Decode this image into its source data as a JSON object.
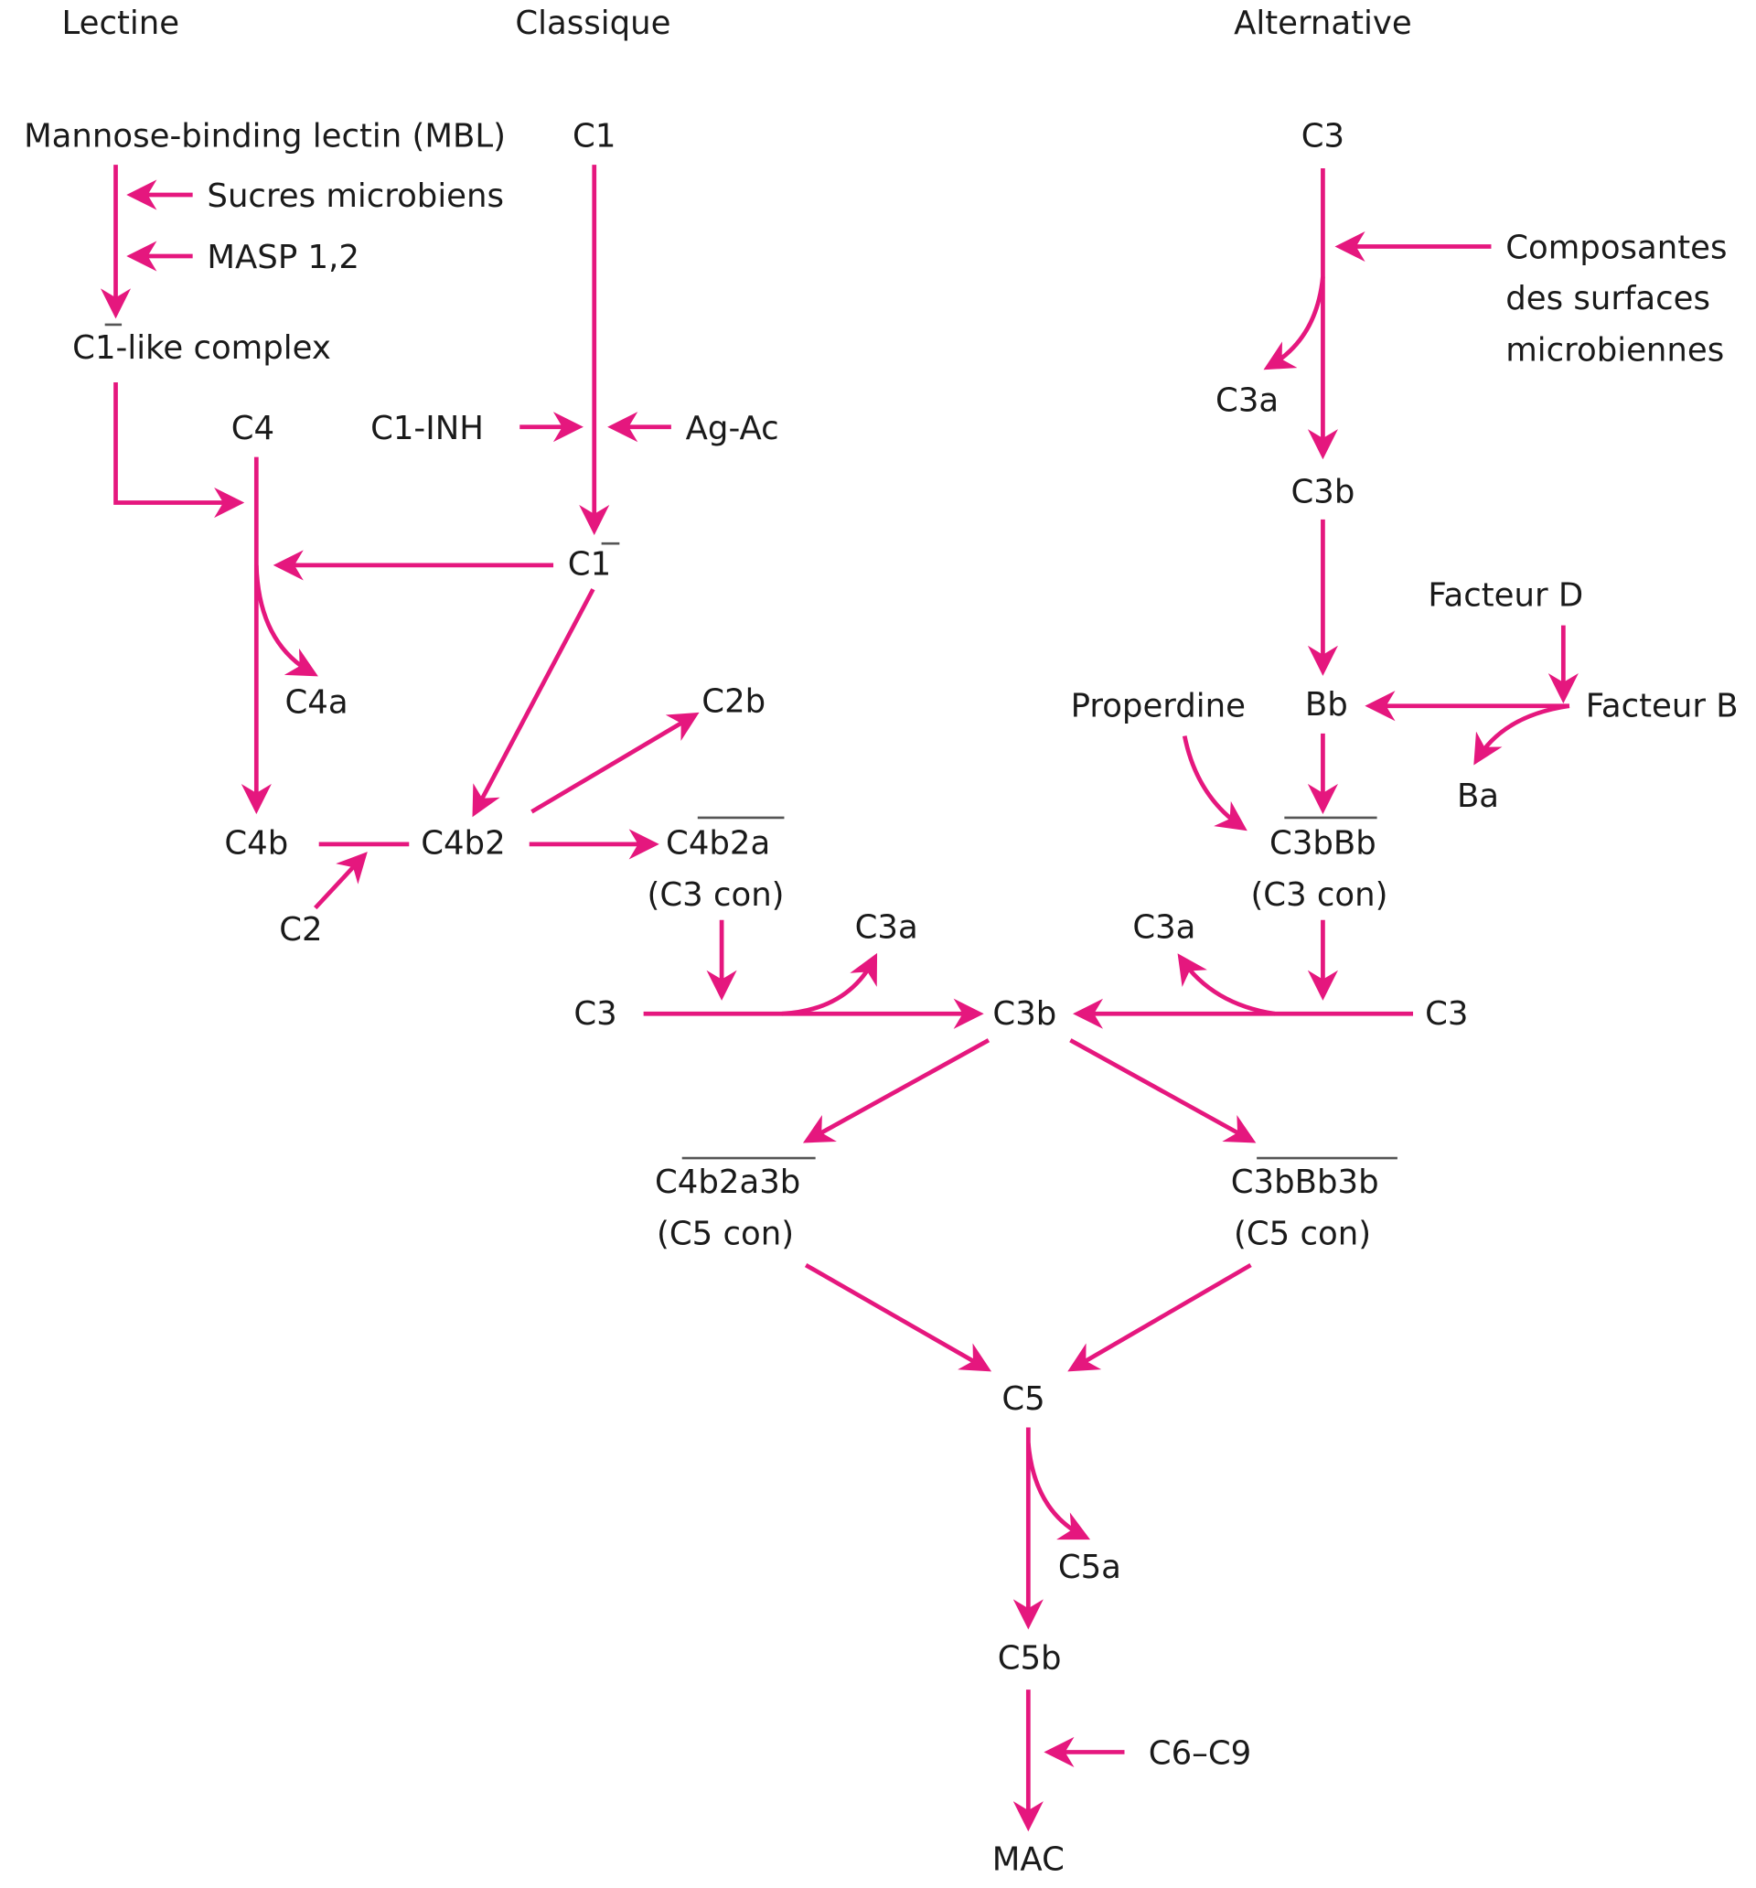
{
  "colors": {
    "arrow": "#e5177e",
    "text": "#1a1a1a"
  },
  "headers": {
    "lectin": "Lectine",
    "classical": "Classique",
    "alternative": "Alternative"
  },
  "lectin": {
    "mbl": "Mannose-binding lectin (MBL)",
    "sugars": "Sucres microbiens",
    "masp": "MASP 1,2",
    "c1_like": "C1-like complex"
  },
  "classical": {
    "c1": "C1",
    "c1_inh": "C1-INH",
    "ag_ac": "Ag-Ac",
    "c1_active": "C1",
    "c4": "C4",
    "c4a": "C4a",
    "c4b": "C4b",
    "c2": "C2",
    "c4b2": "C4b2",
    "c2b": "C2b",
    "c4b2a": "C4b2a",
    "c3_con": "(C3 con)",
    "c3": "C3",
    "c3a": "C3a"
  },
  "alternative": {
    "c3": "C3",
    "surface_line1": "Composantes",
    "surface_line2": "des surfaces",
    "surface_line3": "microbiennes",
    "c3a_top": "C3a",
    "c3b_top": "C3b",
    "factor_d": "Facteur D",
    "factor_b": "Facteur B",
    "bb": "Bb",
    "ba": "Ba",
    "properdin": "Properdine",
    "c3bbb": "C3bBb",
    "c3_con": "(C3 con)",
    "c3a": "C3a",
    "c3_right": "C3"
  },
  "common": {
    "c3b": "C3b",
    "c4b2a3b": "C4b2a3b",
    "c5_con_left": "(C5 con)",
    "c3bbb3b": "C3bBb3b",
    "c5_con_right": "(C5 con)",
    "c5": "C5",
    "c5a": "C5a",
    "c5b": "C5b",
    "c6_c9": "C6–C9",
    "mac": "MAC"
  }
}
